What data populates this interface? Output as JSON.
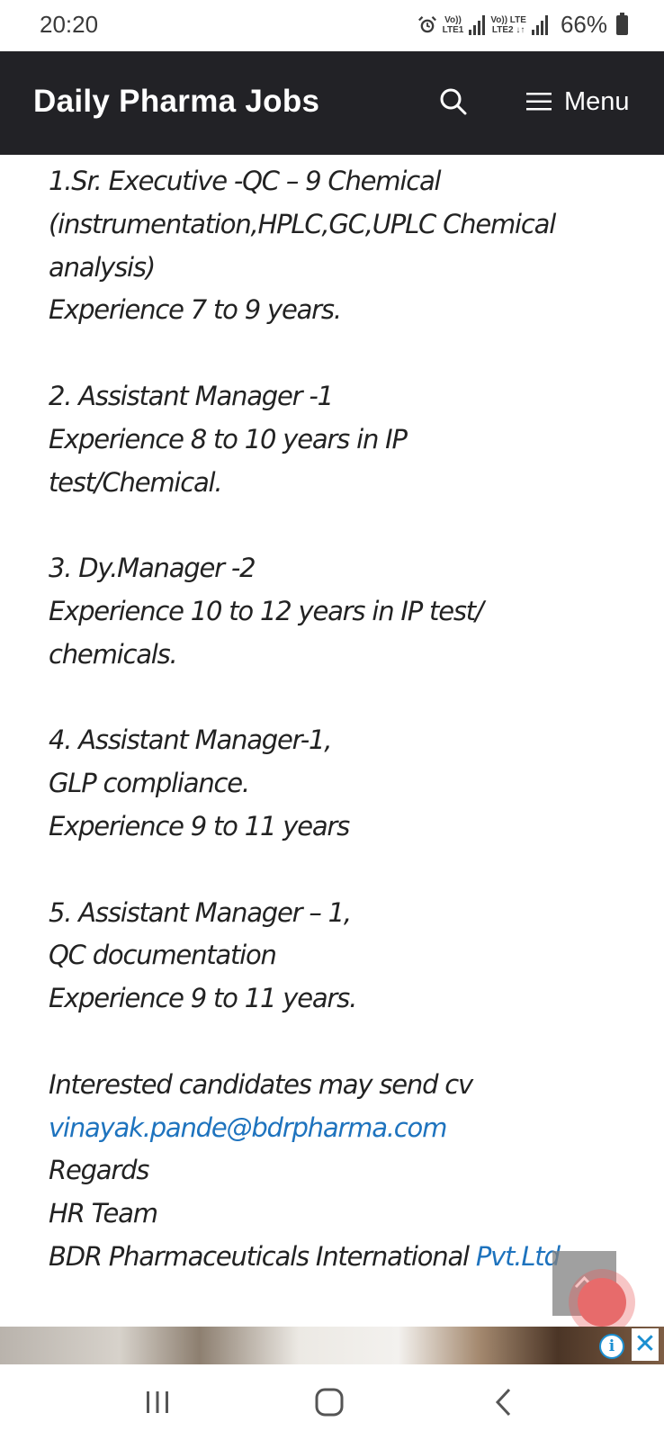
{
  "status_bar": {
    "time": "20:20",
    "sim1_top": "Vo))",
    "sim1_bottom": "LTE1",
    "sim2_top": "Vo)) LTE",
    "sim2_bottom": "LTE2 ↓↑",
    "battery": "66%",
    "icons": [
      "alarm-icon",
      "signal-icon",
      "battery-icon"
    ]
  },
  "header": {
    "site_title": "Daily Pharma Jobs",
    "menu_label": "Menu",
    "icons": [
      "search-icon",
      "hamburger-icon"
    ],
    "background": "#222226"
  },
  "content": {
    "lines": [
      "1.Sr. Executive -QC – 9 Chemical",
      "(instrumentation,HPLC,GC,UPLC Chemical",
      "analysis)",
      "Experience 7 to 9 years.",
      "",
      "2. Assistant Manager -1",
      "Experience 8 to 10 years in IP",
      "test/Chemical.",
      "",
      "3. Dy.Manager -2",
      "Experience 10 to 12 years in IP test/",
      "chemicals.",
      "",
      "4. Assistant Manager-1,",
      "GLP compliance.",
      "Experience 9 to 11 years",
      "",
      "5. Assistant Manager – 1,",
      "QC documentation",
      "Experience 9 to 11 years.",
      "",
      "Interested candidates may send cv"
    ],
    "email_link": "vinayak.pande@bdrpharma.com",
    "regards": "Regards",
    "team": "HR Team",
    "company_prefix": "BDR Pharmaceuticals International ",
    "company_link": "Pvt.Ltd",
    "link_color": "#1e73be"
  },
  "ad": {
    "info_glyph": "i",
    "close_glyph": "✕"
  },
  "navigation": {
    "icons": [
      "recent-apps-icon",
      "home-icon",
      "back-icon"
    ]
  }
}
